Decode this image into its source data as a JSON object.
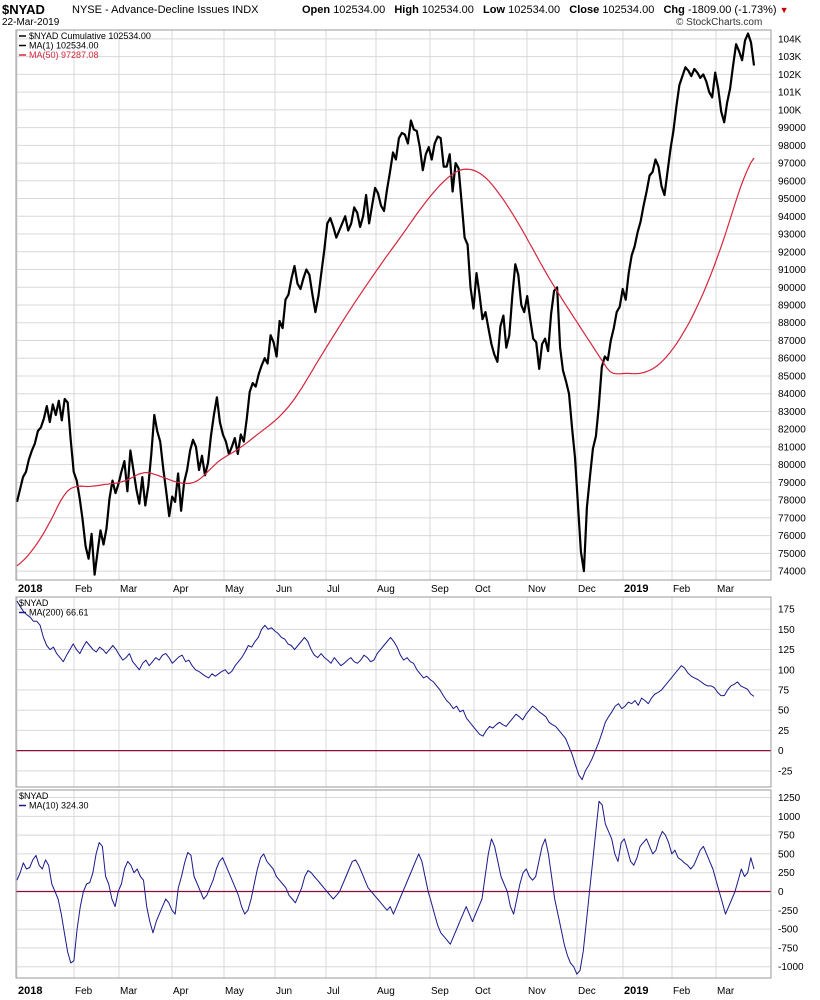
{
  "header": {
    "symbol": "$NYAD",
    "exchange_name": "NYSE - Advance-Decline Issues",
    "indx": "INDX",
    "date": "22-Mar-2019",
    "open_label": "Open",
    "open": "102534.00",
    "high_label": "High",
    "high": "102534.00",
    "low_label": "Low",
    "low": "102534.00",
    "close_label": "Close",
    "close": "102534.00",
    "chg_label": "Chg",
    "chg": "-1809.00 (-1.73%)",
    "watermark": "© StockCharts.com"
  },
  "colors": {
    "price": "#000000",
    "ma50": "#d6263c",
    "osc": "#1a1a8c",
    "zero": "#8b0d36",
    "grid": "#d8d8d8",
    "border": "#9a9a9a"
  },
  "chart_data": [
    {
      "type": "line",
      "panel": "price",
      "legend": [
        "$NYAD Cumulative 102534.00",
        "MA(1) 102534.00",
        "MA(50) 97287.08"
      ],
      "y_tick_labels": [
        "104K",
        "103K",
        "102K",
        "101K",
        "100K",
        "99000",
        "98000",
        "97000",
        "96000",
        "95000",
        "94000",
        "93000",
        "92000",
        "91000",
        "90000",
        "89000",
        "88000",
        "87000",
        "86000",
        "85000",
        "84000",
        "83000",
        "82000",
        "81000",
        "80000",
        "79000",
        "78000",
        "77000",
        "76000",
        "75000",
        "74000"
      ],
      "ylim": [
        73500,
        104500
      ],
      "series": [
        {
          "name": "$NYAD Cumulative",
          "values": [
            77900,
            78600,
            79300,
            79600,
            80300,
            80800,
            81200,
            81900,
            82100,
            82600,
            83300,
            82400,
            83400,
            82800,
            83600,
            82500,
            83700,
            83500,
            81400,
            79600,
            79100,
            78100,
            76900,
            75400,
            74700,
            76100,
            73800,
            75100,
            76300,
            75500,
            76400,
            78100,
            79100,
            78400,
            78900,
            79600,
            80200,
            78500,
            80800,
            79700,
            78600,
            77800,
            79300,
            77700,
            78800,
            80600,
            82800,
            81900,
            81300,
            79800,
            78500,
            77100,
            78200,
            77900,
            79500,
            77400,
            79000,
            79700,
            80800,
            81400,
            81000,
            79700,
            80500,
            79400,
            80100,
            81600,
            82800,
            83800,
            82400,
            81700,
            81300,
            80600,
            81000,
            81500,
            80600,
            81700,
            81300,
            82600,
            84100,
            84600,
            84400,
            85100,
            85600,
            86000,
            85700,
            87300,
            86900,
            86100,
            88100,
            87700,
            89300,
            89600,
            90500,
            91200,
            90200,
            89900,
            90500,
            91000,
            90700,
            89600,
            88600,
            89500,
            90800,
            92100,
            93600,
            93900,
            93400,
            92800,
            93200,
            93600,
            94000,
            93200,
            93600,
            94500,
            94200,
            93400,
            94000,
            95200,
            93600,
            94600,
            95600,
            95300,
            94600,
            94300,
            95500,
            96500,
            97600,
            97200,
            98400,
            98700,
            98600,
            98100,
            99400,
            98900,
            98800,
            97900,
            96600,
            97500,
            97900,
            97200,
            98100,
            98500,
            98400,
            96800,
            96800,
            97500,
            95400,
            97000,
            96700,
            94800,
            92800,
            92400,
            90000,
            88800,
            90800,
            89600,
            88200,
            88600,
            87700,
            86800,
            86200,
            85800,
            87800,
            88400,
            86600,
            87300,
            89500,
            91300,
            90700,
            89000,
            88600,
            89500,
            88200,
            87100,
            86900,
            85400,
            86800,
            87100,
            86400,
            88500,
            89800,
            90000,
            86600,
            85300,
            84700,
            84000,
            82100,
            80400,
            77700,
            75100,
            74000,
            77600,
            79300,
            80900,
            81600,
            83300,
            85500,
            86100,
            85900,
            87000,
            87700,
            88600,
            88900,
            89900,
            89300,
            90800,
            91800,
            92300,
            93100,
            93700,
            94600,
            95400,
            96300,
            96500,
            97200,
            96800,
            95700,
            95200,
            96500,
            97800,
            98800,
            100200,
            101400,
            101900,
            102400,
            102200,
            101900,
            102300,
            102100,
            101800,
            102000,
            101600,
            101000,
            100700,
            102100,
            101200,
            99900,
            99300,
            100400,
            101200,
            102500,
            103700,
            103300,
            102800,
            103900,
            104300,
            103800,
            102500
          ]
        },
        {
          "name": "MA(50)",
          "values": [
            74300,
            74450,
            74620,
            74820,
            75050,
            75300,
            75560,
            75850,
            76150,
            76480,
            76830,
            77200,
            77600,
            77950,
            78250,
            78500,
            78650,
            78730,
            78780,
            78790,
            78780,
            78770,
            78780,
            78800,
            78820,
            78850,
            78880,
            78900,
            78930,
            78950,
            78970,
            79020,
            79080,
            79150,
            79240,
            79340,
            79440,
            79500,
            79550,
            79560,
            79520,
            79460,
            79400,
            79320,
            79260,
            79190,
            79120,
            79060,
            79010,
            78970,
            78940,
            78940,
            78960,
            79020,
            79120,
            79260,
            79430,
            79620,
            79800,
            79990,
            80160,
            80300,
            80420,
            80540,
            80640,
            80760,
            80880,
            81010,
            81150,
            81290,
            81440,
            81590,
            81740,
            81880,
            82030,
            82170,
            82320,
            82480,
            82650,
            82840,
            83040,
            83260,
            83500,
            83760,
            84040,
            84330,
            84630,
            84940,
            85260,
            85580,
            85890,
            86200,
            86510,
            86820,
            87120,
            87420,
            87720,
            88020,
            88320,
            88610,
            88900,
            89190,
            89470,
            89750,
            90030,
            90310,
            90580,
            90850,
            91120,
            91390,
            91660,
            91920,
            92180,
            92440,
            92700,
            92960,
            93230,
            93500,
            93770,
            94040,
            94300,
            94550,
            94800,
            95040,
            95270,
            95490,
            95700,
            95890,
            96070,
            96230,
            96370,
            96490,
            96580,
            96640,
            96660,
            96650,
            96610,
            96540,
            96440,
            96310,
            96150,
            95960,
            95740,
            95500,
            95250,
            94990,
            94710,
            94420,
            94120,
            93810,
            93490,
            93160,
            92830,
            92490,
            92150,
            91800,
            91460,
            91120,
            90790,
            90470,
            90160,
            89850,
            89550,
            89250,
            88950,
            88660,
            88370,
            88080,
            87790,
            87500,
            87210,
            86920,
            86630,
            86340,
            86050,
            85760,
            85470,
            85250,
            85150,
            85120,
            85120,
            85140,
            85150,
            85140,
            85130,
            85130,
            85150,
            85190,
            85250,
            85330,
            85430,
            85560,
            85720,
            85900,
            86110,
            86340,
            86590,
            86860,
            87150,
            87460,
            87790,
            88140,
            88510,
            88900,
            89310,
            89740,
            90190,
            90660,
            91150,
            91660,
            92190,
            92740,
            93310,
            93900,
            94500,
            95100,
            95650,
            96150,
            96600,
            97000,
            97287
          ]
        }
      ]
    },
    {
      "type": "line",
      "panel": "ma200",
      "legend": [
        "$NYAD",
        "MA(200) 66.61"
      ],
      "y_tick_labels": [
        "175",
        "150",
        "125",
        "100",
        "75",
        "50",
        "25",
        "0",
        "-25"
      ],
      "ylim": [
        -45,
        190
      ],
      "series": [
        {
          "name": "MA(200)",
          "values": [
            185,
            178,
            172,
            168,
            165,
            160,
            160,
            155,
            140,
            130,
            125,
            128,
            120,
            115,
            110,
            118,
            125,
            132,
            125,
            120,
            128,
            135,
            130,
            125,
            122,
            128,
            125,
            120,
            125,
            130,
            125,
            118,
            112,
            115,
            120,
            110,
            105,
            100,
            108,
            112,
            105,
            110,
            115,
            112,
            118,
            120,
            115,
            108,
            112,
            116,
            118,
            110,
            112,
            105,
            100,
            98,
            95,
            92,
            90,
            95,
            92,
            95,
            98,
            100,
            95,
            98,
            105,
            110,
            115,
            122,
            130,
            128,
            135,
            140,
            150,
            155,
            150,
            152,
            148,
            145,
            140,
            138,
            132,
            130,
            125,
            130,
            135,
            140,
            135,
            125,
            118,
            115,
            120,
            115,
            112,
            108,
            115,
            110,
            105,
            108,
            112,
            115,
            110,
            108,
            112,
            118,
            115,
            110,
            112,
            120,
            125,
            130,
            135,
            140,
            135,
            128,
            118,
            112,
            115,
            110,
            108,
            100,
            95,
            90,
            92,
            88,
            85,
            80,
            75,
            68,
            62,
            58,
            52,
            55,
            48,
            50,
            40,
            35,
            30,
            25,
            20,
            18,
            25,
            30,
            28,
            32,
            35,
            32,
            30,
            35,
            40,
            45,
            42,
            38,
            45,
            50,
            55,
            52,
            48,
            45,
            42,
            35,
            32,
            30,
            25,
            20,
            15,
            5,
            -5,
            -18,
            -30,
            -36,
            -25,
            -18,
            -10,
            0,
            10,
            22,
            35,
            42,
            48,
            55,
            58,
            52,
            55,
            60,
            58,
            62,
            56,
            65,
            62,
            58,
            65,
            70,
            72,
            75,
            80,
            85,
            90,
            95,
            100,
            105,
            102,
            96,
            92,
            90,
            88,
            85,
            82,
            80,
            80,
            78,
            72,
            68,
            68,
            75,
            80,
            82,
            85,
            80,
            78,
            76,
            70,
            67
          ]
        }
      ]
    },
    {
      "type": "line",
      "panel": "ma10",
      "legend": [
        "$NYAD",
        "MA(10) 324.30"
      ],
      "y_tick_labels": [
        "1250",
        "1000",
        "750",
        "500",
        "250",
        "0",
        "-250",
        "-500",
        "-750",
        "-1000"
      ],
      "ylim": [
        -1150,
        1350
      ],
      "series": [
        {
          "name": "MA(10)",
          "values": [
            150,
            250,
            380,
            300,
            320,
            420,
            480,
            350,
            300,
            420,
            350,
            100,
            0,
            -100,
            -300,
            -550,
            -800,
            -950,
            -920,
            -500,
            -200,
            0,
            100,
            120,
            250,
            500,
            650,
            600,
            200,
            100,
            -100,
            -200,
            0,
            100,
            300,
            400,
            350,
            250,
            300,
            200,
            150,
            -200,
            -400,
            -550,
            -400,
            -300,
            -200,
            -100,
            -150,
            -250,
            -300,
            50,
            200,
            380,
            520,
            480,
            200,
            100,
            0,
            -100,
            -50,
            50,
            150,
            300,
            400,
            450,
            350,
            250,
            150,
            50,
            -50,
            -200,
            -300,
            -250,
            -100,
            100,
            300,
            450,
            500,
            400,
            350,
            300,
            200,
            150,
            100,
            50,
            -50,
            -100,
            -150,
            -50,
            50,
            200,
            280,
            250,
            200,
            150,
            100,
            50,
            0,
            -50,
            -100,
            -50,
            0,
            100,
            200,
            300,
            400,
            420,
            350,
            250,
            150,
            50,
            0,
            -50,
            -100,
            -150,
            -200,
            -250,
            -200,
            -300,
            -200,
            -100,
            0,
            100,
            200,
            300,
            400,
            500,
            400,
            200,
            0,
            -150,
            -300,
            -450,
            -550,
            -600,
            -650,
            -700,
            -600,
            -500,
            -400,
            -300,
            -200,
            -300,
            -400,
            -300,
            -200,
            -100,
            200,
            500,
            700,
            600,
            400,
            200,
            100,
            0,
            -200,
            -300,
            -100,
            100,
            250,
            300,
            200,
            150,
            200,
            400,
            600,
            700,
            500,
            200,
            -100,
            -300,
            -500,
            -700,
            -850,
            -950,
            -1000,
            -1100,
            -1050,
            -800,
            -400,
            0,
            400,
            800,
            1200,
            1150,
            900,
            800,
            700,
            500,
            400,
            650,
            700,
            550,
            400,
            350,
            450,
            600,
            650,
            700,
            600,
            500,
            550,
            700,
            800,
            750,
            650,
            500,
            550,
            450,
            420,
            380,
            350,
            300,
            350,
            450,
            550,
            600,
            500,
            400,
            300,
            150,
            0,
            -150,
            -300,
            -200,
            -100,
            0,
            150,
            300,
            200,
            250,
            450,
            300
          ]
        }
      ]
    }
  ],
  "x_axis": {
    "labels": [
      "2018",
      "Feb",
      "Mar",
      "Apr",
      "May",
      "Jun",
      "Jul",
      "Aug",
      "Sep",
      "Oct",
      "Nov",
      "Dec",
      "2019",
      "Feb",
      "Mar"
    ],
    "bold": [
      "2018",
      "2019"
    ]
  }
}
